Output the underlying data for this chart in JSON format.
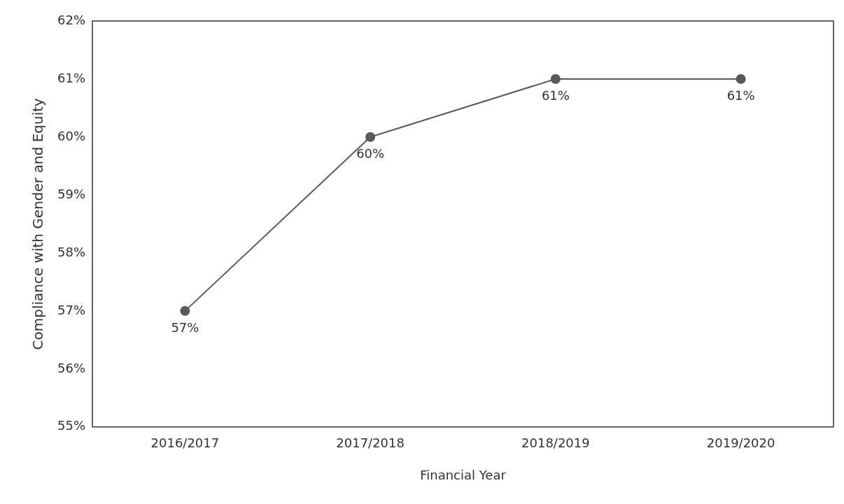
{
  "chart_data": {
    "type": "line",
    "xlabel": "Financial Year",
    "ylabel": "Compliance with Gender and Equity",
    "categories": [
      "2016/2017",
      "2017/2018",
      "2018/2019",
      "2019/2020"
    ],
    "series": [
      {
        "color": "#595959",
        "values": [
          57,
          60,
          61,
          61
        ],
        "value_labels": [
          "57%",
          "60%",
          "61%",
          "61%"
        ]
      }
    ],
    "ylim": [
      55,
      62
    ],
    "yticks": [
      {
        "value": 55,
        "label": "55%"
      },
      {
        "value": 56,
        "label": "56%"
      },
      {
        "value": 57,
        "label": "57%"
      },
      {
        "value": 58,
        "label": "58%"
      },
      {
        "value": 59,
        "label": "59%"
      },
      {
        "value": 60,
        "label": "60%"
      },
      {
        "value": 61,
        "label": "61%"
      },
      {
        "value": 62,
        "label": "62%"
      }
    ],
    "grid": false,
    "legend": false,
    "marker": "circle",
    "line_style": "solid"
  }
}
